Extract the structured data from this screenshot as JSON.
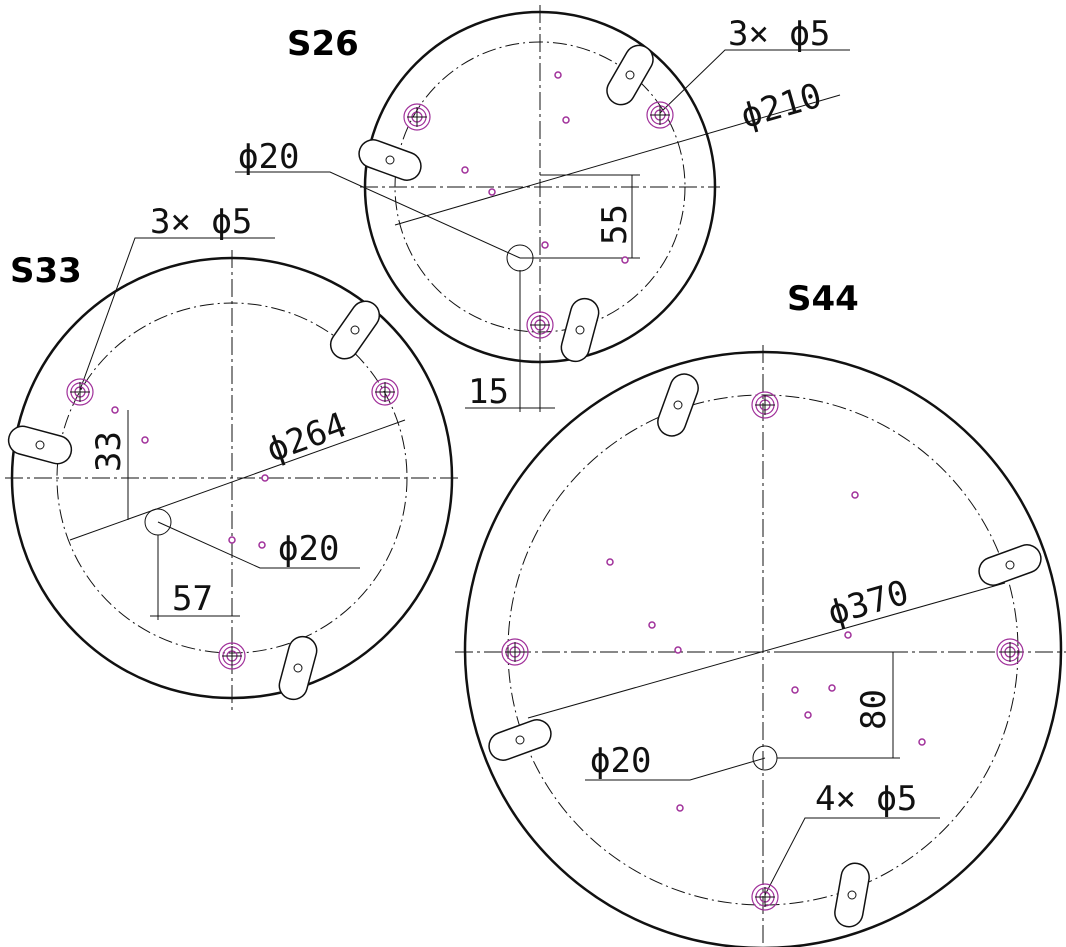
{
  "drawings": [
    {
      "label": "S26",
      "dimensions": [
        "3× ϕ5",
        "ϕ210",
        "ϕ20",
        "55",
        "15"
      ]
    },
    {
      "label": "S33",
      "dimensions": [
        "3× ϕ5",
        "33",
        "ϕ264",
        "ϕ20",
        "57"
      ]
    },
    {
      "label": "S44",
      "dimensions": [
        "ϕ370",
        "80",
        "ϕ20",
        "4× ϕ5"
      ]
    }
  ]
}
